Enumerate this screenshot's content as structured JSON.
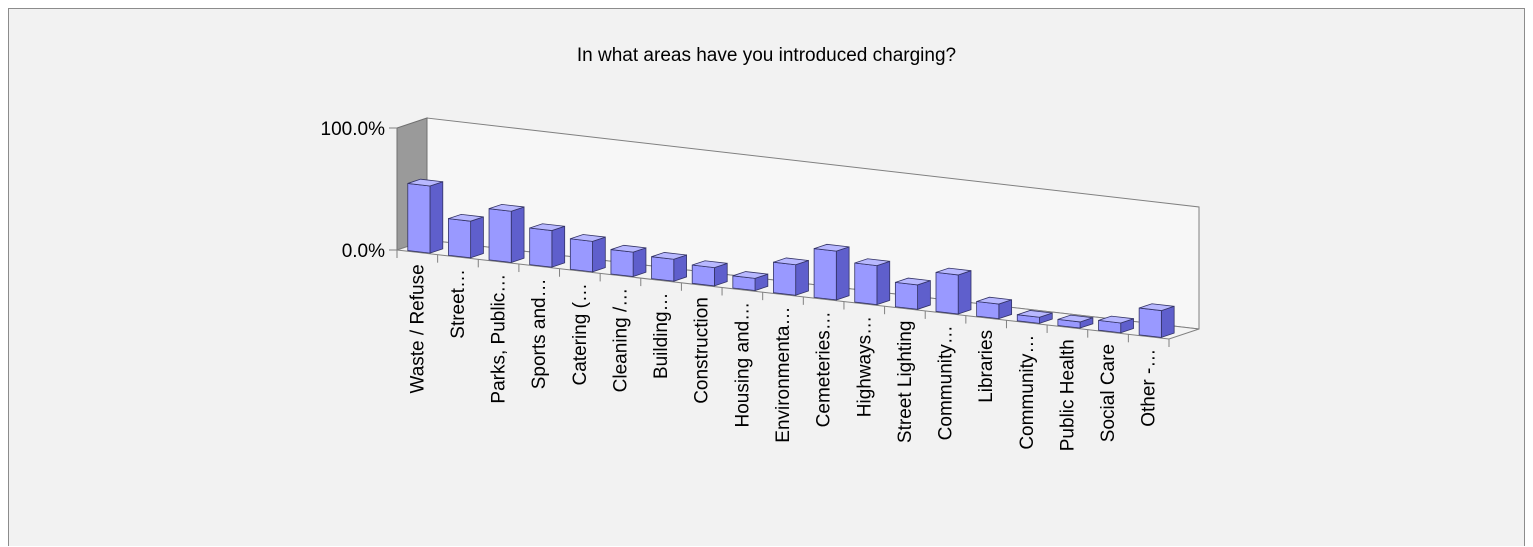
{
  "chart_data": {
    "type": "bar",
    "title": "In what areas have you introduced charging?",
    "xlabel": "",
    "ylabel": "",
    "ylim": [
      0,
      100
    ],
    "y_tick_labels": [
      "0.0%",
      "100.0%"
    ],
    "categories": [
      "Waste / Refuse",
      "Street…",
      "Parks, Public…",
      "Sports and…",
      "Catering (…",
      "Cleaning /…",
      "Building…",
      "Construction",
      "Housing and…",
      "Environmenta…",
      "Cemeteries…",
      "Highways…",
      "Street Lighting",
      "Community…",
      "Libraries",
      "Community…",
      "Public Health",
      "Social Care",
      "Other -…"
    ],
    "values": [
      55,
      30,
      42,
      30,
      25,
      20,
      18,
      15,
      10,
      25,
      40,
      32,
      20,
      32,
      12,
      5,
      5,
      8,
      22
    ],
    "grid": false,
    "legend": "none",
    "bar_color": "#9999ff"
  }
}
